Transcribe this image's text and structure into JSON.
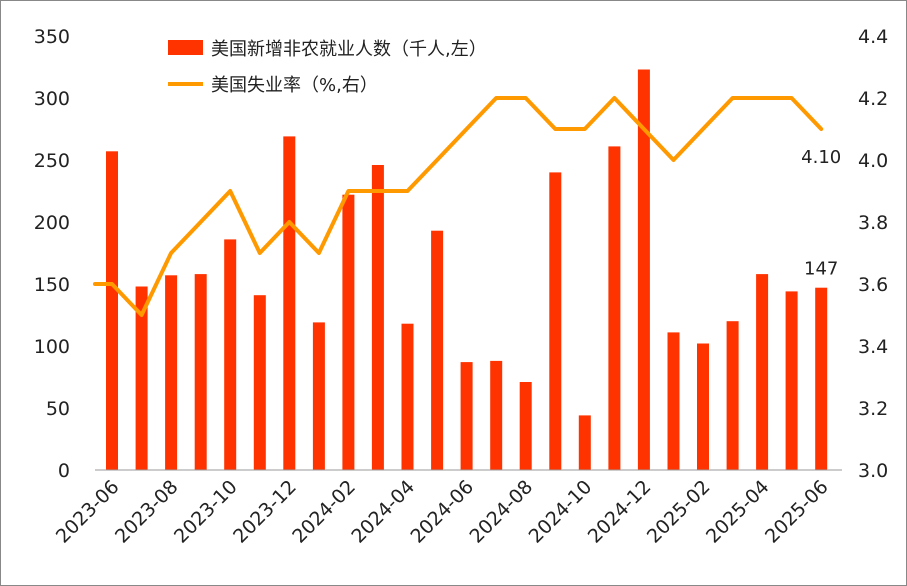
{
  "chart_data": {
    "type": "bar+line",
    "categories": [
      "2023-06",
      "2023-07",
      "2023-08",
      "2023-09",
      "2023-10",
      "2023-11",
      "2023-12",
      "2024-01",
      "2024-02",
      "2024-03",
      "2024-04",
      "2024-05",
      "2024-06",
      "2024-07",
      "2024-08",
      "2024-09",
      "2024-10",
      "2024-11",
      "2024-12",
      "2025-01",
      "2025-02",
      "2025-03",
      "2025-04",
      "2025-05",
      "2025-06"
    ],
    "x_tick_labels": [
      "2023-06",
      "2023-08",
      "2023-10",
      "2023-12",
      "2024-02",
      "2024-04",
      "2024-06",
      "2024-08",
      "2024-10",
      "2024-12",
      "2025-02",
      "2025-04",
      "2025-06"
    ],
    "series": [
      {
        "name": "美国新增非农就业人数（千人,左）",
        "type": "bar",
        "axis": "left",
        "color": "#ff3300",
        "values": [
          257,
          148,
          157,
          158,
          186,
          141,
          269,
          119,
          222,
          246,
          118,
          193,
          87,
          88,
          71,
          240,
          44,
          261,
          323,
          111,
          102,
          120,
          158,
          144,
          147
        ]
      },
      {
        "name": "美国失业率（%,右）",
        "type": "line",
        "axis": "right",
        "color": "#ff9900",
        "values": [
          3.6,
          3.5,
          3.7,
          3.8,
          3.9,
          3.7,
          3.8,
          3.7,
          3.9,
          3.9,
          3.9,
          4.0,
          4.1,
          4.2,
          4.2,
          4.1,
          4.1,
          4.2,
          4.1,
          4.0,
          4.1,
          4.2,
          4.2,
          4.2,
          4.1
        ]
      }
    ],
    "y_left": {
      "ylim": [
        0,
        350
      ],
      "ticks": [
        "0",
        "50",
        "100",
        "150",
        "200",
        "250",
        "300",
        "350"
      ]
    },
    "y_right": {
      "ylim": [
        3.0,
        4.4
      ],
      "ticks": [
        "3.0",
        "3.2",
        "3.4",
        "3.6",
        "3.8",
        "4.0",
        "4.2",
        "4.4"
      ]
    },
    "annotations": [
      {
        "series": 0,
        "index": 24,
        "text": "147"
      },
      {
        "series": 1,
        "index": 24,
        "text": "4.10"
      }
    ],
    "legend": "top-left",
    "grid": false
  }
}
